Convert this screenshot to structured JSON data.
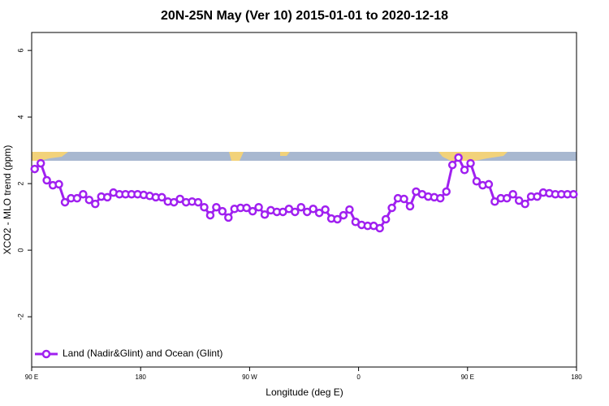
{
  "chart_data": {
    "type": "line",
    "title": "20N-25N May (Ver 10)   2015-01-01 to 2020-12-18",
    "xlabel": "Longitude (deg E)",
    "ylabel": "XCO2 - MLO trend (ppm)",
    "x": [
      92.5,
      97.5,
      102.5,
      107.5,
      112.5,
      117.5,
      122.5,
      127.5,
      132.5,
      137.5,
      142.5,
      147.5,
      152.5,
      157.5,
      162.5,
      167.5,
      172.5,
      177.5,
      182.5,
      187.5,
      192.5,
      197.5,
      202.5,
      207.5,
      212.5,
      217.5,
      222.5,
      227.5,
      232.5,
      237.5,
      242.5,
      247.5,
      252.5,
      257.5,
      262.5,
      267.5,
      272.5,
      277.5,
      282.5,
      287.5,
      292.5,
      297.5,
      302.5,
      307.5,
      312.5,
      317.5,
      322.5,
      327.5,
      332.5,
      337.5,
      342.5,
      347.5,
      352.5,
      357.5,
      362.5,
      367.5,
      372.5,
      377.5,
      382.5,
      387.5,
      392.5,
      397.5,
      402.5,
      407.5,
      412.5,
      417.5,
      422.5,
      427.5,
      432.5,
      437.5,
      442.5,
      447.5,
      452.5,
      457.5,
      462.5,
      467.5,
      472.5,
      477.5,
      482.5,
      487.5,
      492.5,
      497.5,
      502.5,
      507.5,
      512.5,
      517.5,
      522.5,
      527.5,
      532.5,
      537.5
    ],
    "series": [
      {
        "name": "Land (Nadir&Glint) and Ocean (Glint)",
        "color": "#a020f0",
        "values": [
          2.44,
          2.61,
          2.1,
          1.95,
          1.98,
          1.44,
          1.56,
          1.56,
          1.68,
          1.51,
          1.39,
          1.61,
          1.59,
          1.73,
          1.68,
          1.68,
          1.68,
          1.68,
          1.66,
          1.63,
          1.59,
          1.59,
          1.46,
          1.44,
          1.54,
          1.44,
          1.46,
          1.44,
          1.29,
          1.05,
          1.29,
          1.17,
          0.98,
          1.24,
          1.27,
          1.27,
          1.17,
          1.29,
          1.07,
          1.2,
          1.15,
          1.15,
          1.24,
          1.15,
          1.29,
          1.15,
          1.24,
          1.12,
          1.22,
          0.95,
          0.93,
          1.05,
          1.22,
          0.85,
          0.76,
          0.73,
          0.73,
          0.66,
          0.93,
          1.27,
          1.56,
          1.54,
          1.32,
          1.76,
          1.68,
          1.61,
          1.59,
          1.56,
          1.76,
          2.56,
          2.78,
          2.41,
          2.61,
          2.07,
          1.95,
          1.98,
          1.46,
          1.56,
          1.56,
          1.68,
          1.49,
          1.39,
          1.61,
          1.61,
          1.73,
          1.71,
          1.68,
          1.68,
          1.68,
          1.68
        ]
      }
    ],
    "xlim": [
      90,
      540
    ],
    "xticks": [
      {
        "value": 90,
        "label": "90 E"
      },
      180,
      {
        "value": 270,
        "label": "90 W"
      },
      {
        "value": 360,
        "label": "0"
      },
      {
        "value": 450,
        "label": "90 E"
      },
      {
        "value": 540,
        "label": "180"
      }
    ],
    "ylim": [
      -3.51,
      6.54
    ],
    "yticks": [
      -2,
      0,
      2,
      4,
      6
    ],
    "legend": "bottom-left"
  }
}
